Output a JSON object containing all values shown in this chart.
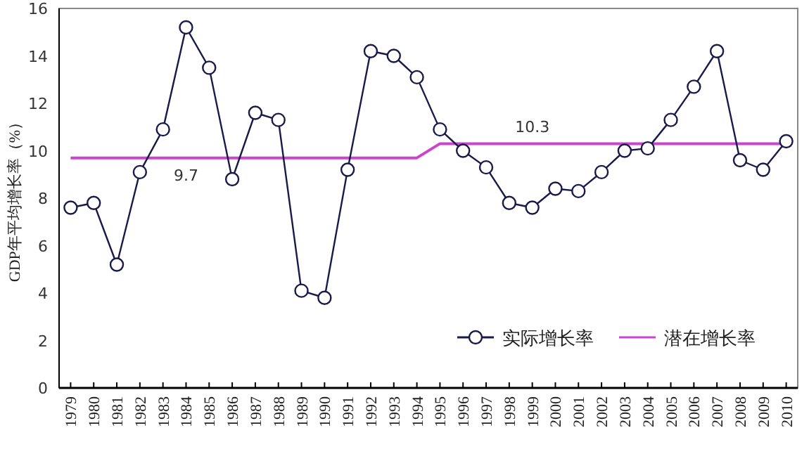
{
  "chart_data": {
    "type": "line",
    "ylabel": "GDP年平均增长率（%）",
    "categories": [
      "1979",
      "1980",
      "1981",
      "1982",
      "1983",
      "1984",
      "1985",
      "1986",
      "1987",
      "1988",
      "1989",
      "1990",
      "1991",
      "1992",
      "1993",
      "1994",
      "1995",
      "1996",
      "1997",
      "1998",
      "1999",
      "2000",
      "2001",
      "2002",
      "2003",
      "2004",
      "2005",
      "2006",
      "2007",
      "2008",
      "2009",
      "2010"
    ],
    "series": [
      {
        "name": "实际增长率",
        "color": "#1a1a4a",
        "marker": "circle",
        "values": [
          7.6,
          7.8,
          5.2,
          9.1,
          10.9,
          15.2,
          13.5,
          8.8,
          11.6,
          11.3,
          4.1,
          3.8,
          9.2,
          14.2,
          14.0,
          13.1,
          10.9,
          10.0,
          9.3,
          7.8,
          7.6,
          8.4,
          8.3,
          9.1,
          10.0,
          10.1,
          11.3,
          12.7,
          14.2,
          9.6,
          9.2,
          10.4
        ]
      },
      {
        "name": "潜在增长率",
        "color": "#cc44cc",
        "marker": "none",
        "values": [
          9.7,
          9.7,
          9.7,
          9.7,
          9.7,
          9.7,
          9.7,
          9.7,
          9.7,
          9.7,
          9.7,
          9.7,
          9.7,
          9.7,
          9.7,
          9.7,
          10.3,
          10.3,
          10.3,
          10.3,
          10.3,
          10.3,
          10.3,
          10.3,
          10.3,
          10.3,
          10.3,
          10.3,
          10.3,
          10.3,
          10.3,
          10.3
        ]
      }
    ],
    "ylim": [
      0,
      16
    ],
    "yticks": [
      0,
      2,
      4,
      6,
      8,
      10,
      12,
      14,
      16
    ],
    "grid": false,
    "legend": "bottom right",
    "line_style": "solid",
    "annotations": [
      {
        "text": "9.7",
        "x": "1984",
        "y": 9.7
      },
      {
        "text": "10.3",
        "x": "1999",
        "y": 10.3
      }
    ]
  }
}
